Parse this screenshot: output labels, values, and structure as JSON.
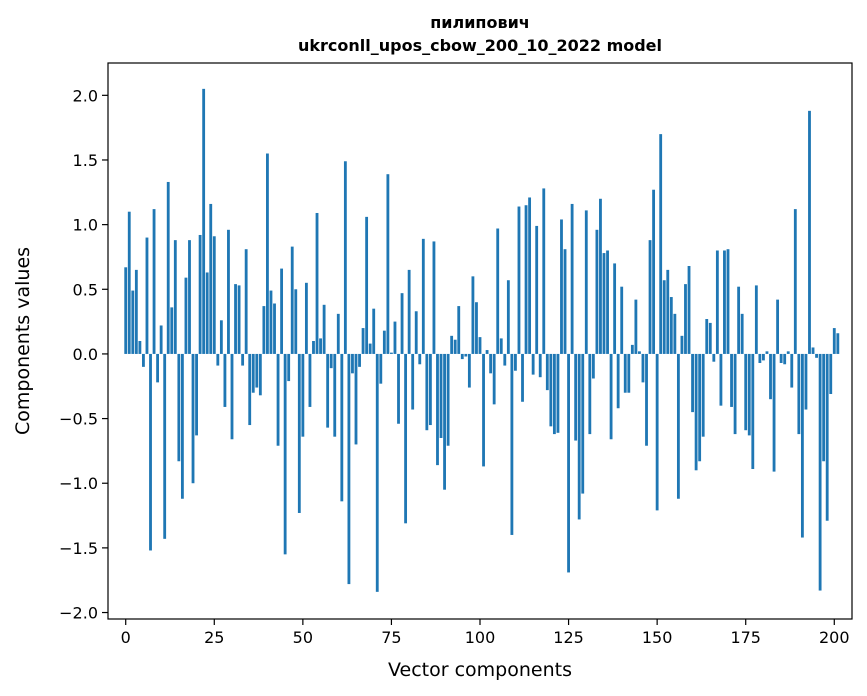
{
  "chart_data": {
    "type": "bar",
    "title_line1": "пилипович",
    "title_line2": "ukrconll_upos_cbow_200_10_2022 model",
    "xlabel": "Vector components",
    "ylabel": "Components values",
    "xlim": [
      -5,
      205
    ],
    "ylim": [
      -2.05,
      2.25
    ],
    "xticks": [
      0,
      25,
      50,
      75,
      100,
      125,
      150,
      175,
      200
    ],
    "yticks": [
      -2.0,
      -1.5,
      -1.0,
      -0.5,
      0.0,
      0.5,
      1.0,
      1.5,
      2.0
    ],
    "ytick_labels": [
      "−2.0",
      "−1.5",
      "−1.0",
      "−0.5",
      "0.0",
      "0.5",
      "1.0",
      "1.5",
      "2.0"
    ],
    "xtick_labels": [
      "0",
      "25",
      "50",
      "75",
      "100",
      "125",
      "150",
      "175",
      "200"
    ],
    "bar_color": "#1f77b4",
    "grid": false,
    "values": [
      0.67,
      1.1,
      0.49,
      0.65,
      0.1,
      -0.1,
      0.9,
      -1.52,
      1.12,
      -0.22,
      0.22,
      -1.43,
      1.33,
      0.36,
      0.88,
      -0.83,
      -1.12,
      0.59,
      0.88,
      -1.0,
      -0.63,
      0.92,
      2.05,
      0.63,
      1.16,
      0.91,
      -0.09,
      0.26,
      -0.41,
      0.96,
      -0.66,
      0.54,
      0.53,
      -0.09,
      0.81,
      -0.55,
      -0.3,
      -0.26,
      -0.32,
      0.37,
      1.55,
      0.49,
      0.39,
      -0.71,
      0.66,
      -1.55,
      -0.21,
      0.83,
      0.5,
      -1.23,
      -0.64,
      0.55,
      -0.41,
      0.1,
      1.09,
      0.12,
      0.38,
      -0.57,
      -0.11,
      -0.64,
      0.31,
      -1.14,
      1.49,
      -1.78,
      -0.15,
      -0.7,
      -0.1,
      0.2,
      1.06,
      0.08,
      0.35,
      -1.84,
      -0.23,
      0.18,
      1.39,
      0.01,
      0.25,
      -0.54,
      0.47,
      -1.31,
      0.65,
      -0.43,
      0.33,
      -0.08,
      0.89,
      -0.59,
      -0.55,
      0.87,
      -0.86,
      -0.65,
      -1.05,
      -0.71,
      0.14,
      0.11,
      0.37,
      -0.04,
      -0.02,
      -0.26,
      0.6,
      0.4,
      0.13,
      -0.87,
      0.03,
      -0.15,
      -0.39,
      0.97,
      0.12,
      -0.09,
      0.57,
      -1.4,
      -0.13,
      1.14,
      -0.37,
      1.15,
      1.21,
      -0.16,
      0.99,
      -0.18,
      1.28,
      -0.28,
      -0.56,
      -0.62,
      -0.61,
      1.04,
      0.81,
      -1.69,
      1.16,
      -0.67,
      -1.28,
      -1.08,
      1.11,
      -0.62,
      -0.19,
      0.96,
      1.2,
      0.78,
      0.8,
      -0.66,
      0.7,
      -0.42,
      0.52,
      -0.3,
      -0.3,
      0.07,
      0.42,
      0.02,
      -0.22,
      -0.71,
      0.88,
      1.27,
      -1.21,
      1.7,
      0.57,
      0.65,
      0.44,
      0.31,
      -1.12,
      0.14,
      0.54,
      0.68,
      -0.45,
      -0.9,
      -0.83,
      -0.64,
      0.27,
      0.24,
      -0.06,
      0.8,
      -0.4,
      0.8,
      0.81,
      -0.41,
      -0.62,
      0.52,
      0.31,
      -0.59,
      -0.63,
      -0.89,
      0.53,
      -0.07,
      -0.05,
      0.02,
      -0.35,
      -0.91,
      0.42,
      -0.07,
      -0.08,
      0.02,
      -0.26,
      1.12,
      -0.62,
      -1.42,
      -0.43,
      1.88,
      0.05,
      -0.03,
      -1.83,
      -0.83,
      -1.29,
      -0.31,
      0.2,
      0.16
    ]
  }
}
